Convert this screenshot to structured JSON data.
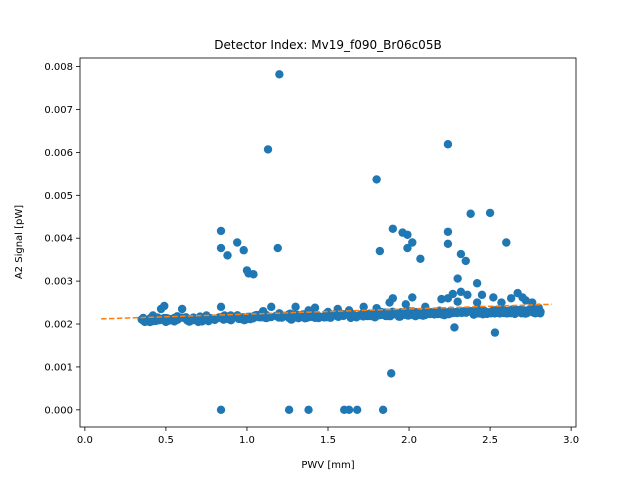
{
  "chart_data": {
    "type": "scatter",
    "title": "Detector Index: Mv19_f090_Br06c05B",
    "xlabel": "PWV [mm]",
    "ylabel": "A2 Signal [pW]",
    "xlim": [
      -0.03,
      3.03
    ],
    "ylim": [
      -0.0004,
      0.0082
    ],
    "xticks": [
      0.0,
      0.5,
      1.0,
      1.5,
      2.0,
      2.5,
      3.0
    ],
    "xtick_labels": [
      "0.0",
      "0.5",
      "1.0",
      "1.5",
      "2.0",
      "2.5",
      "3.0"
    ],
    "yticks": [
      0.0,
      0.001,
      0.002,
      0.003,
      0.004,
      0.005,
      0.006,
      0.007,
      0.008
    ],
    "ytick_labels": [
      "0.000",
      "0.001",
      "0.002",
      "0.003",
      "0.004",
      "0.005",
      "0.006",
      "0.007",
      "0.008"
    ],
    "grid": false,
    "colors": {
      "points": "#1f77b4",
      "fit": "#ff7f0e"
    },
    "series": [
      {
        "kind": "scatter",
        "band": {
          "x_range": [
            0.35,
            2.82
          ],
          "y_start": 0.00209,
          "y_end": 0.00231,
          "spread": 7e-05,
          "count": 420
        },
        "points": [
          [
            0.36,
            0.0021
          ],
          [
            0.37,
            0.00205
          ],
          [
            0.42,
            0.0022
          ],
          [
            0.45,
            0.00215
          ],
          [
            0.47,
            0.00235
          ],
          [
            0.49,
            0.00242
          ],
          [
            0.52,
            0.00208
          ],
          [
            0.55,
            0.0021
          ],
          [
            0.57,
            0.00218
          ],
          [
            0.6,
            0.00235
          ],
          [
            0.63,
            0.0021
          ],
          [
            0.67,
            0.00215
          ],
          [
            0.7,
            0.00205
          ],
          [
            0.75,
            0.0022
          ],
          [
            0.83,
            0.00215
          ],
          [
            0.84,
            0.0024
          ],
          [
            0.9,
            0.0022
          ],
          [
            0.95,
            0.00212
          ],
          [
            1.05,
            0.0022
          ],
          [
            1.1,
            0.0023
          ],
          [
            1.15,
            0.0024
          ],
          [
            1.2,
            0.00225
          ],
          [
            1.26,
            0.00215
          ],
          [
            1.3,
            0.0024
          ],
          [
            1.38,
            0.00232
          ],
          [
            1.42,
            0.00238
          ],
          [
            1.5,
            0.00228
          ],
          [
            1.56,
            0.00235
          ],
          [
            1.63,
            0.00232
          ],
          [
            1.72,
            0.0024
          ],
          [
            1.8,
            0.00237
          ],
          [
            1.88,
            0.0025
          ],
          [
            1.9,
            0.0026
          ],
          [
            1.98,
            0.00246
          ],
          [
            2.02,
            0.00262
          ],
          [
            2.1,
            0.0024
          ],
          [
            2.2,
            0.00258
          ],
          [
            2.24,
            0.0026
          ],
          [
            2.27,
            0.0027
          ],
          [
            2.3,
            0.00252
          ],
          [
            2.32,
            0.00275
          ],
          [
            2.36,
            0.00268
          ],
          [
            2.42,
            0.0025
          ],
          [
            2.45,
            0.00268
          ],
          [
            2.52,
            0.00262
          ],
          [
            2.57,
            0.0025
          ],
          [
            2.63,
            0.0026
          ],
          [
            2.67,
            0.00272
          ],
          [
            2.7,
            0.00262
          ],
          [
            2.72,
            0.00255
          ],
          [
            2.76,
            0.0025
          ],
          [
            2.8,
            0.00238
          ],
          [
            0.84,
            0.00417
          ],
          [
            0.84,
            0.00377
          ],
          [
            0.88,
            0.0036
          ],
          [
            0.94,
            0.0039
          ],
          [
            0.98,
            0.00372
          ],
          [
            1.0,
            0.00325
          ],
          [
            1.01,
            0.00318
          ],
          [
            1.04,
            0.00316
          ],
          [
            1.13,
            0.00607
          ],
          [
            1.2,
            0.00782
          ],
          [
            1.19,
            0.00377
          ],
          [
            1.8,
            0.00537
          ],
          [
            1.82,
            0.0037
          ],
          [
            1.9,
            0.00422
          ],
          [
            1.96,
            0.00413
          ],
          [
            1.99,
            0.00408
          ],
          [
            1.99,
            0.00377
          ],
          [
            2.02,
            0.0039
          ],
          [
            2.07,
            0.00352
          ],
          [
            2.24,
            0.00619
          ],
          [
            2.24,
            0.00415
          ],
          [
            2.24,
            0.00387
          ],
          [
            2.3,
            0.00306
          ],
          [
            2.32,
            0.00363
          ],
          [
            2.35,
            0.00347
          ],
          [
            2.38,
            0.00457
          ],
          [
            2.42,
            0.00295
          ],
          [
            2.5,
            0.00459
          ],
          [
            2.6,
            0.0039
          ],
          [
            2.28,
            0.00192
          ],
          [
            2.53,
            0.0018
          ],
          [
            1.89,
            0.00085
          ],
          [
            0.84,
            0.0
          ],
          [
            1.26,
            0.0
          ],
          [
            1.38,
            0.0
          ],
          [
            1.6,
            0.0
          ],
          [
            1.63,
            0.0
          ],
          [
            1.68,
            0.0
          ],
          [
            1.84,
            0.0
          ]
        ]
      },
      {
        "kind": "fit_line",
        "style": "dashed",
        "x": [
          0.1,
          2.88
        ],
        "y": [
          0.00212,
          0.00246
        ]
      }
    ]
  }
}
